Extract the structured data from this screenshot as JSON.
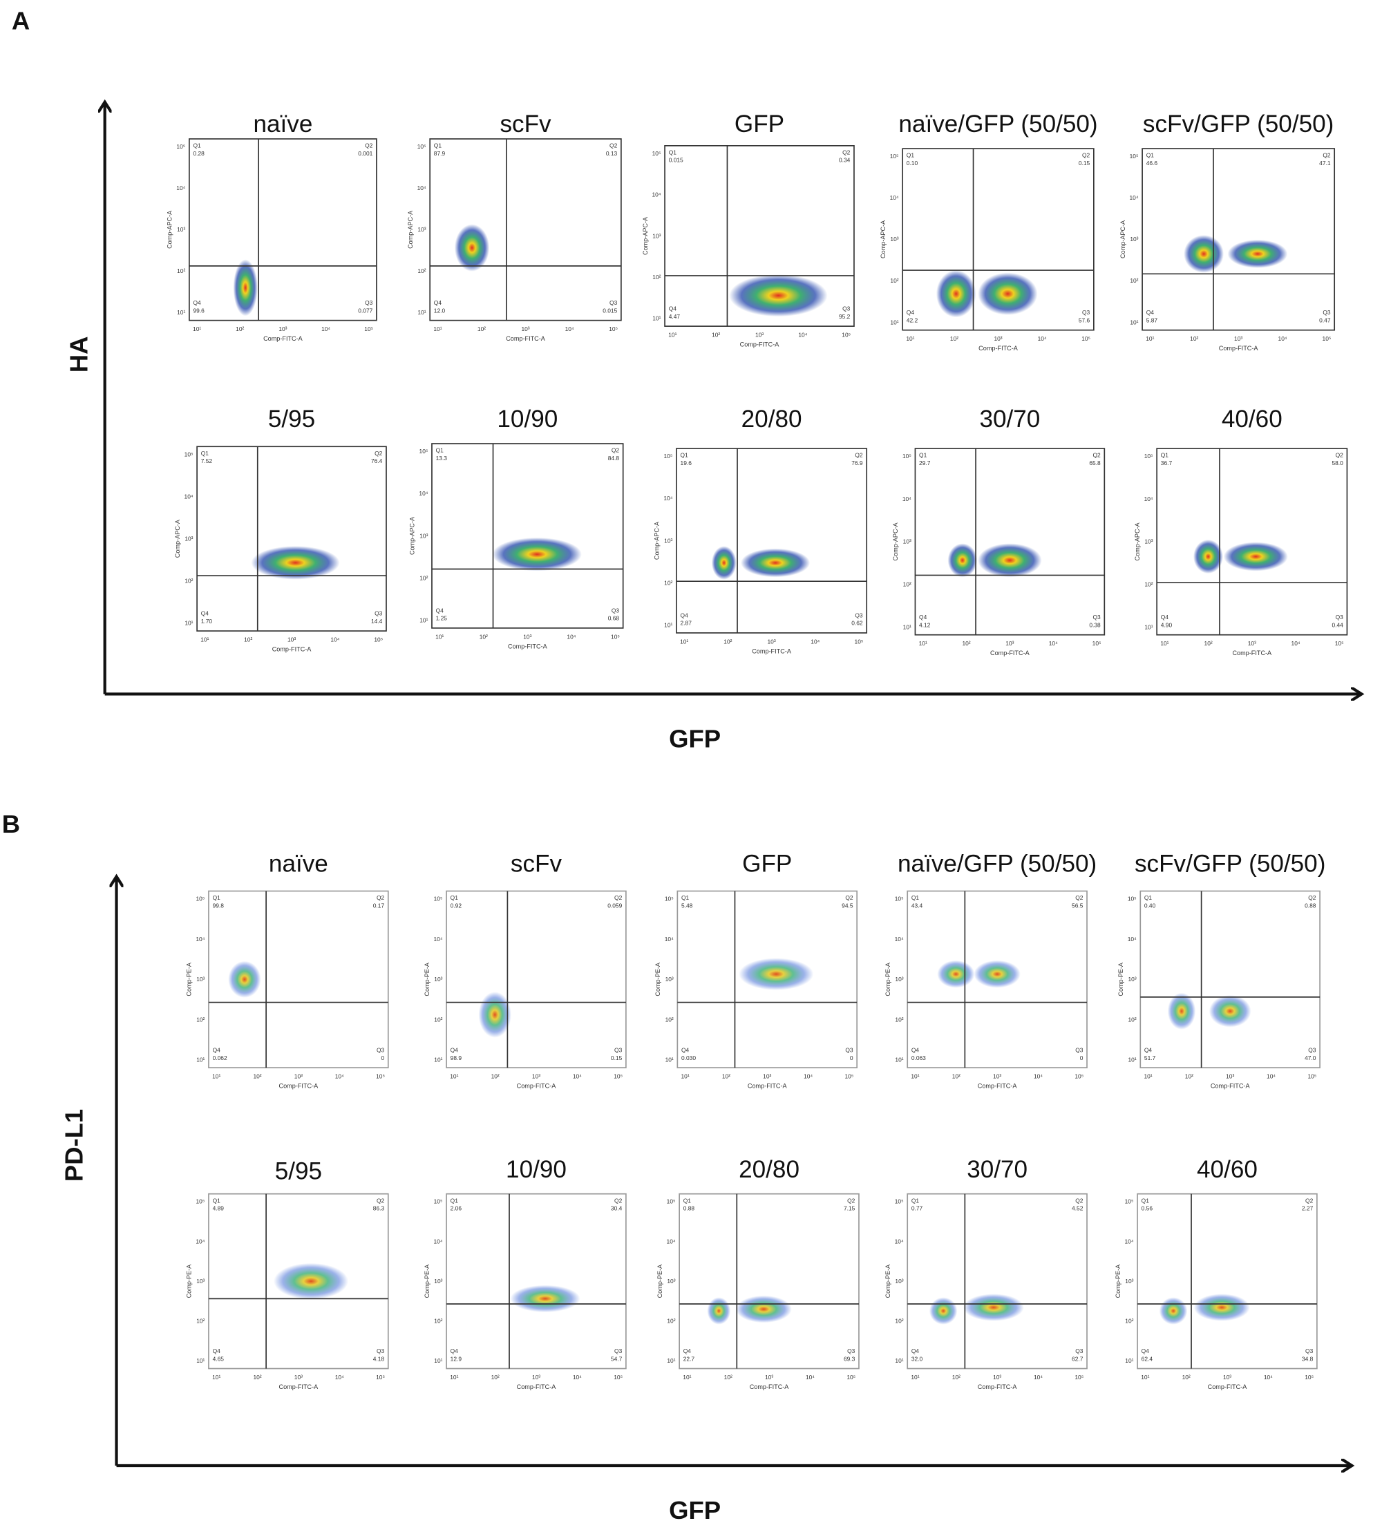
{
  "tick_labels": [
    "10¹",
    "10²",
    "10³",
    "10⁴",
    "10⁵"
  ],
  "panels": [
    {
      "label": "A",
      "y_axis": "HA",
      "x_axis": "GFP",
      "plot_y_axis": "Comp-APC-A",
      "plot_x_axis": "Comp-FITC-A",
      "plots": [
        {
          "title": "naïve",
          "quadrants": [
            {
              "name": "Q1",
              "value": "0.28"
            },
            {
              "name": "Q2",
              "value": "0.001"
            },
            {
              "name": "Q3",
              "value": "0.077"
            },
            {
              "name": "Q4",
              "value": "99.6"
            }
          ]
        },
        {
          "title": "scFv",
          "quadrants": [
            {
              "name": "Q1",
              "value": "87.9"
            },
            {
              "name": "Q2",
              "value": "0.13"
            },
            {
              "name": "Q3",
              "value": "0.015"
            },
            {
              "name": "Q4",
              "value": "12.0"
            }
          ]
        },
        {
          "title": "GFP",
          "quadrants": [
            {
              "name": "Q1",
              "value": "0.015"
            },
            {
              "name": "Q2",
              "value": "0.34"
            },
            {
              "name": "Q3",
              "value": "95.2"
            },
            {
              "name": "Q4",
              "value": "4.47"
            }
          ]
        },
        {
          "title": "naïve/GFP (50/50)",
          "quadrants": [
            {
              "name": "Q1",
              "value": "0.10"
            },
            {
              "name": "Q2",
              "value": "0.15"
            },
            {
              "name": "Q3",
              "value": "57.6"
            },
            {
              "name": "Q4",
              "value": "42.2"
            }
          ]
        },
        {
          "title": "scFv/GFP (50/50)",
          "quadrants": [
            {
              "name": "Q1",
              "value": "46.6"
            },
            {
              "name": "Q2",
              "value": "47.1"
            },
            {
              "name": "Q3",
              "value": "0.47"
            },
            {
              "name": "Q4",
              "value": "5.87"
            }
          ]
        },
        {
          "title": "5/95",
          "quadrants": [
            {
              "name": "Q1",
              "value": "7.52"
            },
            {
              "name": "Q2",
              "value": "76.4"
            },
            {
              "name": "Q3",
              "value": "14.4"
            },
            {
              "name": "Q4",
              "value": "1.70"
            }
          ]
        },
        {
          "title": "10/90",
          "quadrants": [
            {
              "name": "Q1",
              "value": "13.3"
            },
            {
              "name": "Q2",
              "value": "84.8"
            },
            {
              "name": "Q3",
              "value": "0.68"
            },
            {
              "name": "Q4",
              "value": "1.25"
            }
          ]
        },
        {
          "title": "20/80",
          "quadrants": [
            {
              "name": "Q1",
              "value": "19.6"
            },
            {
              "name": "Q2",
              "value": "76.9"
            },
            {
              "name": "Q3",
              "value": "0.62"
            },
            {
              "name": "Q4",
              "value": "2.87"
            }
          ]
        },
        {
          "title": "30/70",
          "quadrants": [
            {
              "name": "Q1",
              "value": "29.7"
            },
            {
              "name": "Q2",
              "value": "65.8"
            },
            {
              "name": "Q3",
              "value": "0.38"
            },
            {
              "name": "Q4",
              "value": "4.12"
            }
          ]
        },
        {
          "title": "40/60",
          "quadrants": [
            {
              "name": "Q1",
              "value": "36.7"
            },
            {
              "name": "Q2",
              "value": "58.0"
            },
            {
              "name": "Q3",
              "value": "0.44"
            },
            {
              "name": "Q4",
              "value": "4.90"
            }
          ]
        }
      ]
    },
    {
      "label": "B",
      "y_axis": "PD-L1",
      "x_axis": "GFP",
      "plot_y_axis": "Comp-PE-A",
      "plot_x_axis": "Comp-FITC-A",
      "plots": [
        {
          "title": "naïve",
          "quadrants": [
            {
              "name": "Q1",
              "value": "99.8"
            },
            {
              "name": "Q2",
              "value": "0.17"
            },
            {
              "name": "Q3",
              "value": "0"
            },
            {
              "name": "Q4",
              "value": "0.062"
            }
          ]
        },
        {
          "title": "scFv",
          "quadrants": [
            {
              "name": "Q1",
              "value": "0.92"
            },
            {
              "name": "Q2",
              "value": "0.059"
            },
            {
              "name": "Q3",
              "value": "0.15"
            },
            {
              "name": "Q4",
              "value": "98.9"
            }
          ]
        },
        {
          "title": "GFP",
          "quadrants": [
            {
              "name": "Q1",
              "value": "5.48"
            },
            {
              "name": "Q2",
              "value": "94.5"
            },
            {
              "name": "Q3",
              "value": "0"
            },
            {
              "name": "Q4",
              "value": "0.030"
            }
          ]
        },
        {
          "title": "naïve/GFP (50/50)",
          "quadrants": [
            {
              "name": "Q1",
              "value": "43.4"
            },
            {
              "name": "Q2",
              "value": "56.5"
            },
            {
              "name": "Q3",
              "value": "0"
            },
            {
              "name": "Q4",
              "value": "0.063"
            }
          ]
        },
        {
          "title": "scFv/GFP (50/50)",
          "quadrants": [
            {
              "name": "Q1",
              "value": "0.40"
            },
            {
              "name": "Q2",
              "value": "0.88"
            },
            {
              "name": "Q3",
              "value": "47.0"
            },
            {
              "name": "Q4",
              "value": "51.7"
            }
          ]
        },
        {
          "title": "5/95",
          "quadrants": [
            {
              "name": "Q1",
              "value": "4.89"
            },
            {
              "name": "Q2",
              "value": "86.3"
            },
            {
              "name": "Q3",
              "value": "4.18"
            },
            {
              "name": "Q4",
              "value": "4.65"
            }
          ]
        },
        {
          "title": "10/90",
          "quadrants": [
            {
              "name": "Q1",
              "value": "2.06"
            },
            {
              "name": "Q2",
              "value": "30.4"
            },
            {
              "name": "Q3",
              "value": "54.7"
            },
            {
              "name": "Q4",
              "value": "12.9"
            }
          ]
        },
        {
          "title": "20/80",
          "quadrants": [
            {
              "name": "Q1",
              "value": "0.88"
            },
            {
              "name": "Q2",
              "value": "7.15"
            },
            {
              "name": "Q3",
              "value": "69.3"
            },
            {
              "name": "Q4",
              "value": "22.7"
            }
          ]
        },
        {
          "title": "30/70",
          "quadrants": [
            {
              "name": "Q1",
              "value": "0.77"
            },
            {
              "name": "Q2",
              "value": "4.52"
            },
            {
              "name": "Q3",
              "value": "62.7"
            },
            {
              "name": "Q4",
              "value": "32.0"
            }
          ]
        },
        {
          "title": "40/60",
          "quadrants": [
            {
              "name": "Q1",
              "value": "0.56"
            },
            {
              "name": "Q2",
              "value": "2.27"
            },
            {
              "name": "Q3",
              "value": "34.8"
            },
            {
              "name": "Q4",
              "value": "62.4"
            }
          ]
        }
      ]
    }
  ]
}
